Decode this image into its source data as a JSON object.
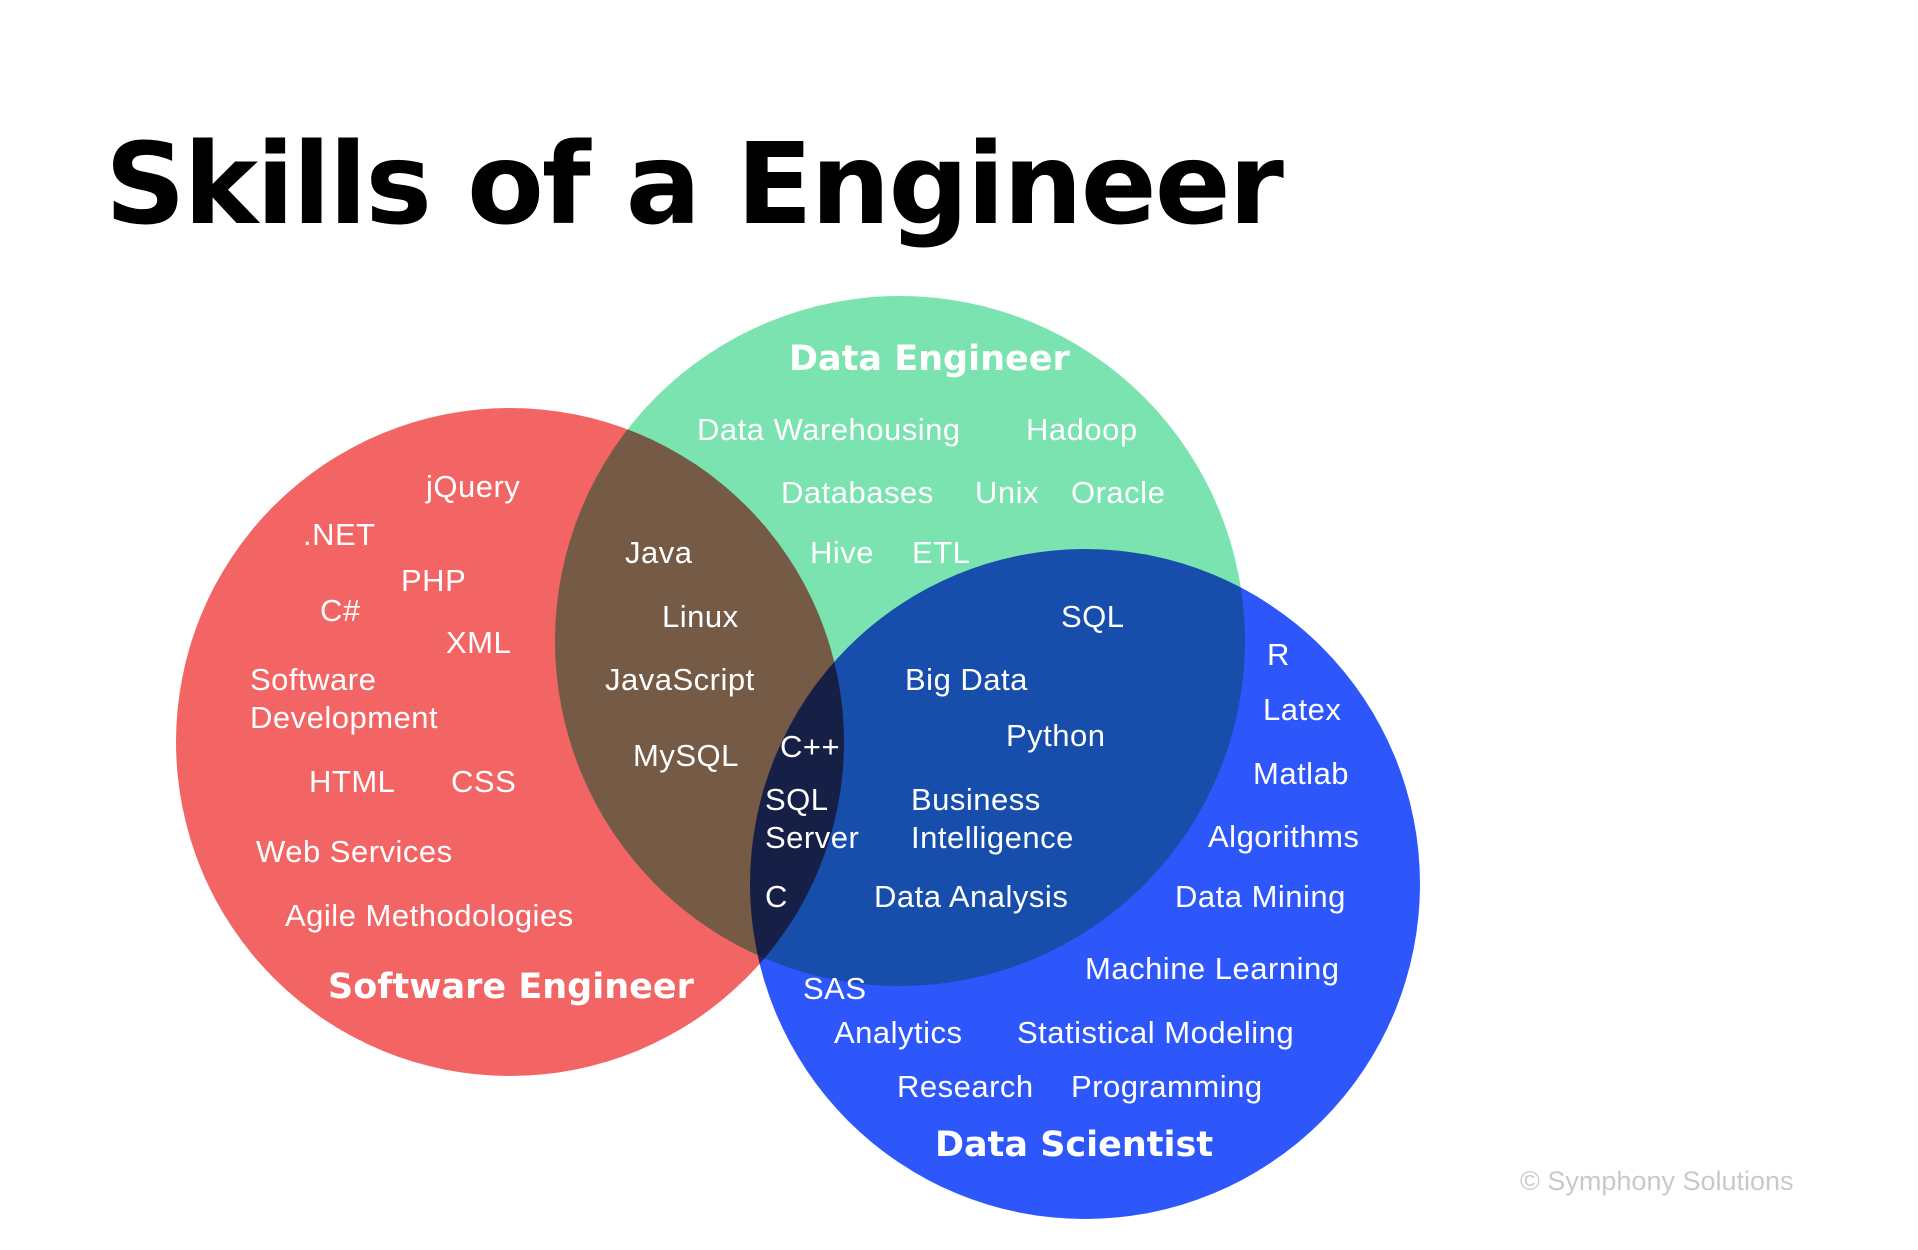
{
  "title": "Skills of a Engineer",
  "copyright": "© Symphony Solutions",
  "colors": {
    "software_engineer": "#f36565",
    "data_engineer": "#7be3af",
    "data_scientist": "#2e57fb",
    "text": "#ffffff",
    "copyright": "#c9c9c9"
  },
  "circles": {
    "software_engineer": {
      "title": "Software Engineer",
      "skills": [
        "jQuery",
        ".NET",
        "PHP",
        "C#",
        "XML",
        "Software",
        "Development",
        "HTML",
        "CSS",
        "Web Services",
        "Agile Methodologies"
      ]
    },
    "data_engineer": {
      "title": "Data Engineer",
      "skills": [
        "Data Warehousing",
        "Hadoop",
        "Databases",
        "Unix",
        "Oracle",
        "Hive",
        "ETL"
      ]
    },
    "data_scientist": {
      "title": "Data Scientist",
      "skills": [
        "R",
        "Latex",
        "Matlab",
        "Algorithms",
        "Data Mining",
        "Machine Learning",
        "SAS",
        "Analytics",
        "Statistical Modeling",
        "Research",
        "Programming"
      ]
    }
  },
  "overlaps": {
    "software_and_data_engineer": [
      "Java",
      "Linux",
      "JavaScript",
      "MySQL"
    ],
    "all_three": [
      "C++",
      "SQL",
      "Server",
      "C"
    ],
    "data_engineer_and_scientist": [
      "SQL",
      "Big Data",
      "Python",
      "Business",
      "Intelligence",
      "Data Analysis"
    ]
  }
}
